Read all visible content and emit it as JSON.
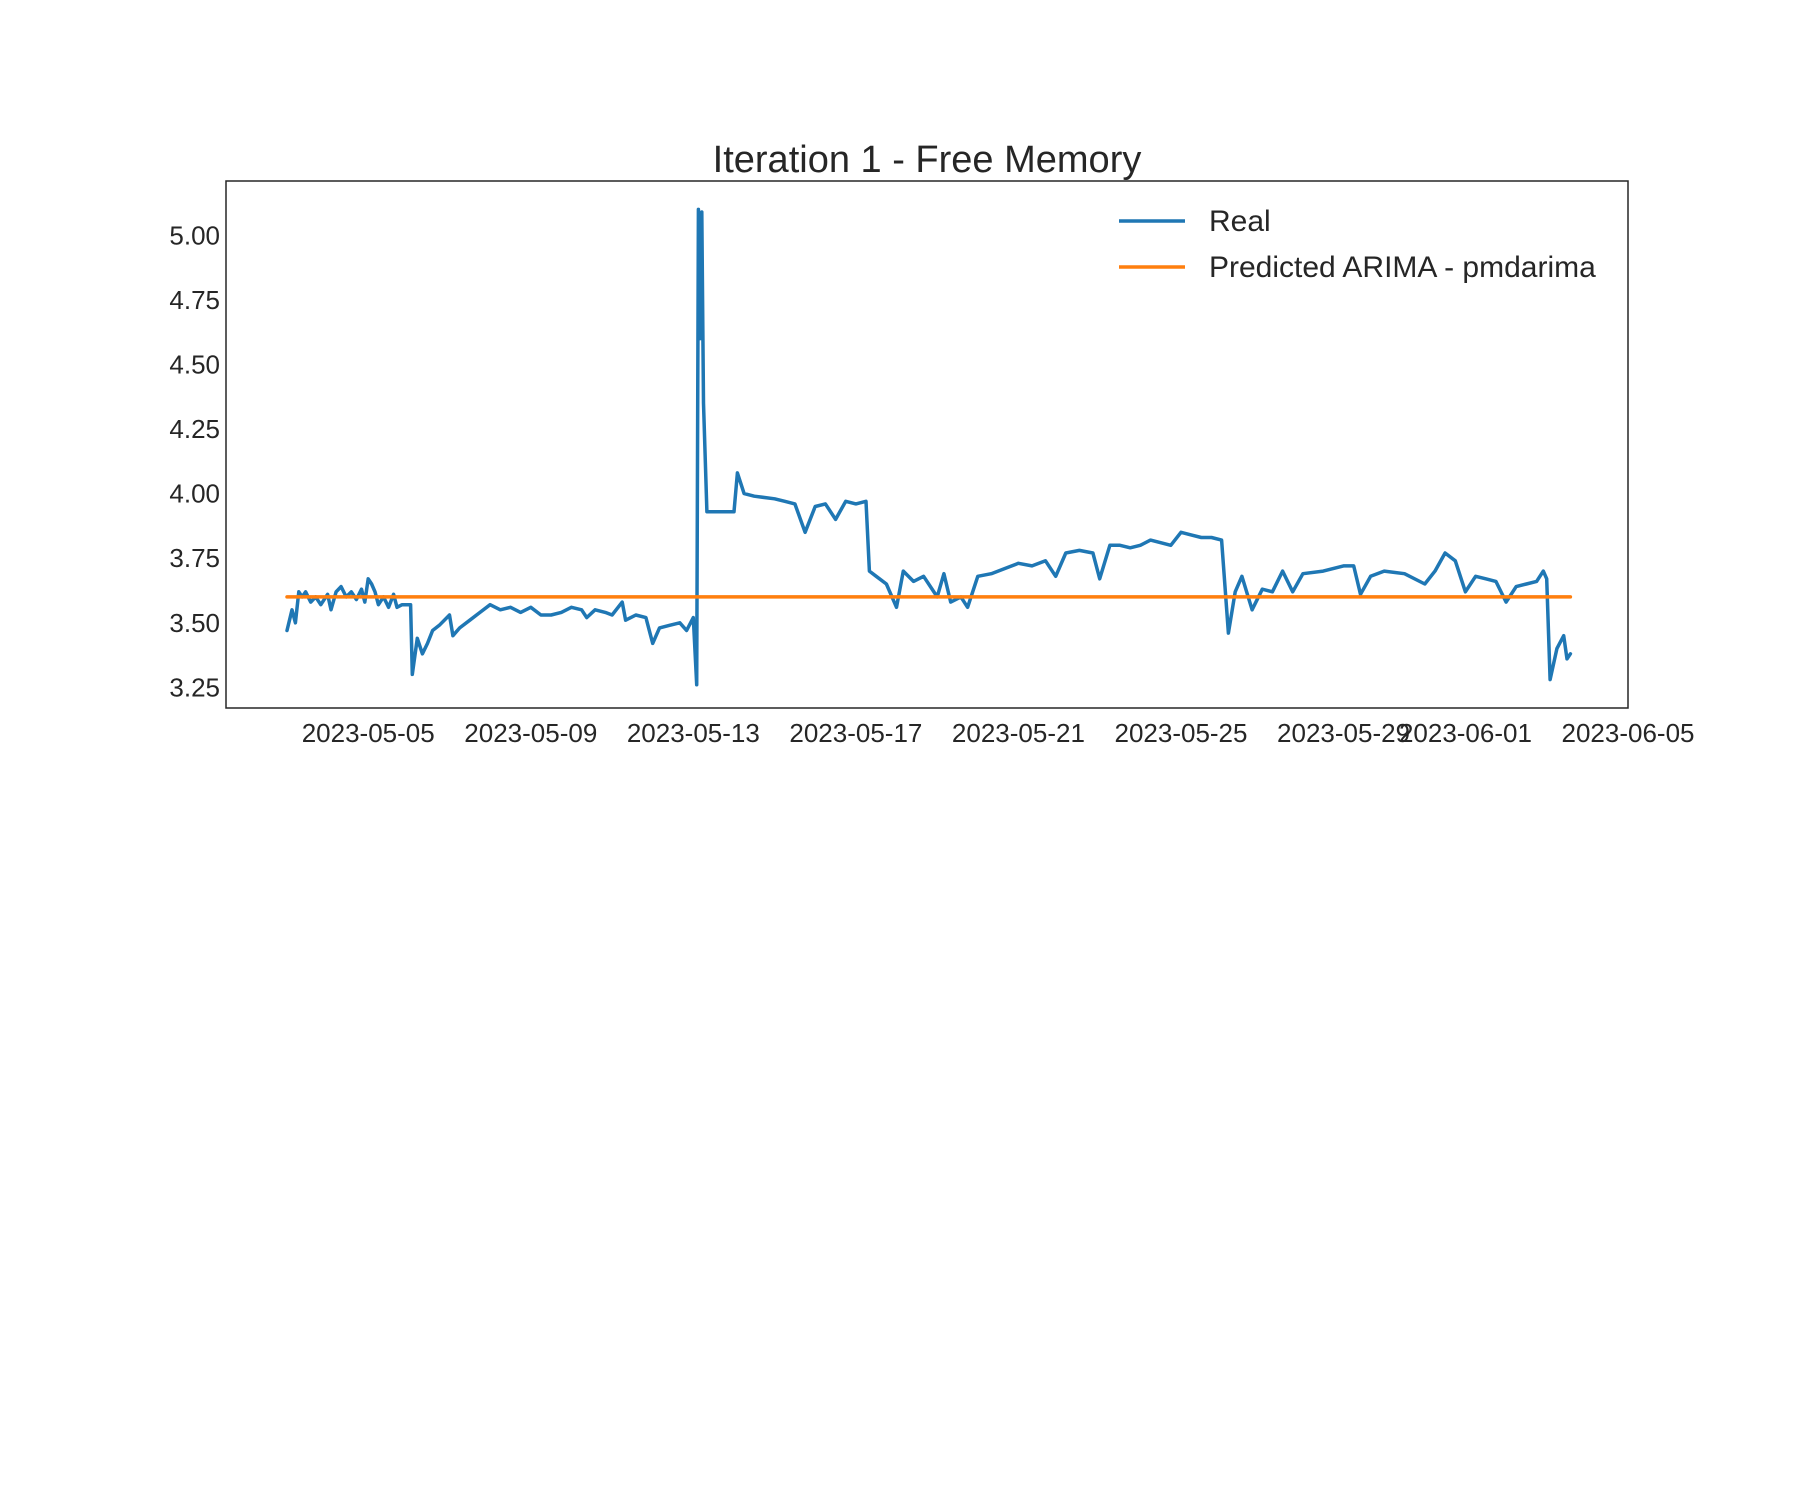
{
  "chart_data": {
    "type": "line",
    "title": "Iteration 1 - Free Memory",
    "xlabel": "",
    "ylabel": "",
    "x_type": "date",
    "xlim": [
      "2023-05-01T12:00",
      "2023-06-05"
    ],
    "ylim": [
      3.17,
      5.21
    ],
    "x_ticks": [
      "2023-05-05",
      "2023-05-09",
      "2023-05-13",
      "2023-05-17",
      "2023-05-21",
      "2023-05-25",
      "2023-05-29",
      "2023-06-01",
      "2023-06-05"
    ],
    "y_ticks": [
      "3.25",
      "3.50",
      "3.75",
      "4.00",
      "4.25",
      "4.50",
      "4.75",
      "5.00"
    ],
    "grid": false,
    "legend": {
      "position": "top-right"
    },
    "series": [
      {
        "name": "Real",
        "color": "#1f77b4",
        "points": [
          [
            "2023-05-03T00:00",
            3.47
          ],
          [
            "2023-05-03T03:00",
            3.55
          ],
          [
            "2023-05-03T05:00",
            3.5
          ],
          [
            "2023-05-03T07:00",
            3.62
          ],
          [
            "2023-05-03T09:00",
            3.6
          ],
          [
            "2023-05-03T11:00",
            3.62
          ],
          [
            "2023-05-03T14:00",
            3.58
          ],
          [
            "2023-05-03T17:00",
            3.6
          ],
          [
            "2023-05-03T20:00",
            3.57
          ],
          [
            "2023-05-04T00:00",
            3.61
          ],
          [
            "2023-05-04T02:00",
            3.55
          ],
          [
            "2023-05-04T05:00",
            3.62
          ],
          [
            "2023-05-04T08:00",
            3.64
          ],
          [
            "2023-05-04T11:00",
            3.6
          ],
          [
            "2023-05-04T14:00",
            3.62
          ],
          [
            "2023-05-04T17:00",
            3.59
          ],
          [
            "2023-05-04T20:00",
            3.63
          ],
          [
            "2023-05-04T22:00",
            3.58
          ],
          [
            "2023-05-05T00:00",
            3.67
          ],
          [
            "2023-05-05T02:00",
            3.65
          ],
          [
            "2023-05-05T04:00",
            3.62
          ],
          [
            "2023-05-05T06:00",
            3.57
          ],
          [
            "2023-05-05T09:00",
            3.6
          ],
          [
            "2023-05-05T12:00",
            3.56
          ],
          [
            "2023-05-05T15:00",
            3.61
          ],
          [
            "2023-05-05T17:00",
            3.56
          ],
          [
            "2023-05-05T20:00",
            3.57
          ],
          [
            "2023-05-06T01:00",
            3.57
          ],
          [
            "2023-05-06T02:00",
            3.3
          ],
          [
            "2023-05-06T05:00",
            3.44
          ],
          [
            "2023-05-06T08:00",
            3.38
          ],
          [
            "2023-05-06T11:00",
            3.42
          ],
          [
            "2023-05-06T14:00",
            3.47
          ],
          [
            "2023-05-06T18:00",
            3.49
          ],
          [
            "2023-05-07T00:00",
            3.53
          ],
          [
            "2023-05-07T02:00",
            3.45
          ],
          [
            "2023-05-07T06:00",
            3.48
          ],
          [
            "2023-05-07T12:00",
            3.51
          ],
          [
            "2023-05-07T18:00",
            3.54
          ],
          [
            "2023-05-08T00:00",
            3.57
          ],
          [
            "2023-05-08T06:00",
            3.55
          ],
          [
            "2023-05-08T12:00",
            3.56
          ],
          [
            "2023-05-08T18:00",
            3.54
          ],
          [
            "2023-05-09T00:00",
            3.56
          ],
          [
            "2023-05-09T06:00",
            3.53
          ],
          [
            "2023-05-09T12:00",
            3.53
          ],
          [
            "2023-05-09T18:00",
            3.54
          ],
          [
            "2023-05-10T00:00",
            3.56
          ],
          [
            "2023-05-10T06:00",
            3.55
          ],
          [
            "2023-05-10T09:00",
            3.52
          ],
          [
            "2023-05-10T14:00",
            3.55
          ],
          [
            "2023-05-10T20:00",
            3.54
          ],
          [
            "2023-05-11T00:00",
            3.53
          ],
          [
            "2023-05-11T06:00",
            3.58
          ],
          [
            "2023-05-11T08:00",
            3.51
          ],
          [
            "2023-05-11T14:00",
            3.53
          ],
          [
            "2023-05-11T20:00",
            3.52
          ],
          [
            "2023-05-12T00:00",
            3.42
          ],
          [
            "2023-05-12T04:00",
            3.48
          ],
          [
            "2023-05-12T10:00",
            3.49
          ],
          [
            "2023-05-12T16:00",
            3.5
          ],
          [
            "2023-05-12T20:00",
            3.47
          ],
          [
            "2023-05-13T00:00",
            3.52
          ],
          [
            "2023-05-13T02:00",
            3.26
          ],
          [
            "2023-05-13T03:00",
            5.1
          ],
          [
            "2023-05-13T04:00",
            4.6
          ],
          [
            "2023-05-13T05:00",
            5.09
          ],
          [
            "2023-05-13T06:00",
            4.35
          ],
          [
            "2023-05-13T08:00",
            3.93
          ],
          [
            "2023-05-13T14:00",
            3.93
          ],
          [
            "2023-05-14T00:00",
            3.93
          ],
          [
            "2023-05-14T02:00",
            4.08
          ],
          [
            "2023-05-14T06:00",
            4.0
          ],
          [
            "2023-05-14T12:00",
            3.99
          ],
          [
            "2023-05-15T00:00",
            3.98
          ],
          [
            "2023-05-15T06:00",
            3.97
          ],
          [
            "2023-05-15T12:00",
            3.96
          ],
          [
            "2023-05-15T18:00",
            3.85
          ],
          [
            "2023-05-16T00:00",
            3.95
          ],
          [
            "2023-05-16T06:00",
            3.96
          ],
          [
            "2023-05-16T12:00",
            3.9
          ],
          [
            "2023-05-16T18:00",
            3.97
          ],
          [
            "2023-05-17T00:00",
            3.96
          ],
          [
            "2023-05-17T06:00",
            3.97
          ],
          [
            "2023-05-17T08:00",
            3.7
          ],
          [
            "2023-05-17T12:00",
            3.68
          ],
          [
            "2023-05-17T18:00",
            3.65
          ],
          [
            "2023-05-18T00:00",
            3.56
          ],
          [
            "2023-05-18T04:00",
            3.7
          ],
          [
            "2023-05-18T10:00",
            3.66
          ],
          [
            "2023-05-18T16:00",
            3.68
          ],
          [
            "2023-05-19T00:00",
            3.6
          ],
          [
            "2023-05-19T04:00",
            3.69
          ],
          [
            "2023-05-19T08:00",
            3.58
          ],
          [
            "2023-05-19T14:00",
            3.6
          ],
          [
            "2023-05-19T18:00",
            3.56
          ],
          [
            "2023-05-20T00:00",
            3.68
          ],
          [
            "2023-05-20T08:00",
            3.69
          ],
          [
            "2023-05-20T16:00",
            3.71
          ],
          [
            "2023-05-21T00:00",
            3.73
          ],
          [
            "2023-05-21T08:00",
            3.72
          ],
          [
            "2023-05-21T16:00",
            3.74
          ],
          [
            "2023-05-21T22:00",
            3.68
          ],
          [
            "2023-05-22T04:00",
            3.77
          ],
          [
            "2023-05-22T12:00",
            3.78
          ],
          [
            "2023-05-22T20:00",
            3.77
          ],
          [
            "2023-05-23T00:00",
            3.67
          ],
          [
            "2023-05-23T06:00",
            3.8
          ],
          [
            "2023-05-23T12:00",
            3.8
          ],
          [
            "2023-05-23T18:00",
            3.79
          ],
          [
            "2023-05-24T00:00",
            3.8
          ],
          [
            "2023-05-24T06:00",
            3.82
          ],
          [
            "2023-05-24T12:00",
            3.81
          ],
          [
            "2023-05-24T18:00",
            3.8
          ],
          [
            "2023-05-25T00:00",
            3.85
          ],
          [
            "2023-05-25T06:00",
            3.84
          ],
          [
            "2023-05-25T12:00",
            3.83
          ],
          [
            "2023-05-25T18:00",
            3.83
          ],
          [
            "2023-05-26T00:00",
            3.82
          ],
          [
            "2023-05-26T04:00",
            3.46
          ],
          [
            "2023-05-26T08:00",
            3.62
          ],
          [
            "2023-05-26T12:00",
            3.68
          ],
          [
            "2023-05-26T18:00",
            3.55
          ],
          [
            "2023-05-27T00:00",
            3.63
          ],
          [
            "2023-05-27T06:00",
            3.62
          ],
          [
            "2023-05-27T12:00",
            3.7
          ],
          [
            "2023-05-27T18:00",
            3.62
          ],
          [
            "2023-05-28T00:00",
            3.69
          ],
          [
            "2023-05-28T12:00",
            3.7
          ],
          [
            "2023-05-29T00:00",
            3.72
          ],
          [
            "2023-05-29T06:00",
            3.72
          ],
          [
            "2023-05-29T10:00",
            3.61
          ],
          [
            "2023-05-29T16:00",
            3.68
          ],
          [
            "2023-05-30T00:00",
            3.7
          ],
          [
            "2023-05-30T12:00",
            3.69
          ],
          [
            "2023-05-31T00:00",
            3.65
          ],
          [
            "2023-05-31T06:00",
            3.7
          ],
          [
            "2023-05-31T12:00",
            3.77
          ],
          [
            "2023-05-31T18:00",
            3.74
          ],
          [
            "2023-06-01T00:00",
            3.62
          ],
          [
            "2023-06-01T06:00",
            3.68
          ],
          [
            "2023-06-01T12:00",
            3.67
          ],
          [
            "2023-06-01T18:00",
            3.66
          ],
          [
            "2023-06-02T00:00",
            3.58
          ],
          [
            "2023-06-02T06:00",
            3.64
          ],
          [
            "2023-06-02T12:00",
            3.65
          ],
          [
            "2023-06-02T18:00",
            3.66
          ],
          [
            "2023-06-02T22:00",
            3.7
          ],
          [
            "2023-06-03T00:00",
            3.67
          ],
          [
            "2023-06-03T02:00",
            3.28
          ],
          [
            "2023-06-03T06:00",
            3.4
          ],
          [
            "2023-06-03T10:00",
            3.45
          ],
          [
            "2023-06-03T12:00",
            3.36
          ],
          [
            "2023-06-03T14:00",
            3.38
          ]
        ]
      },
      {
        "name": "Predicted ARIMA - pmdarima",
        "color": "#ff7f0e",
        "points": [
          [
            "2023-05-03T00:00",
            3.6
          ],
          [
            "2023-06-03T14:00",
            3.6
          ]
        ]
      }
    ]
  }
}
